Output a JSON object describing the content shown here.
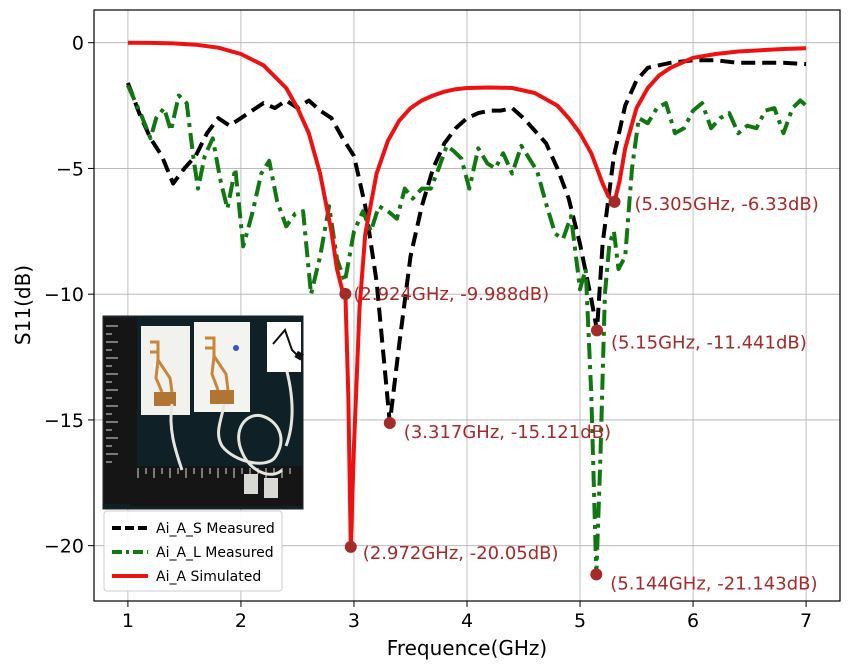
{
  "chart_data": {
    "type": "line",
    "xlabel": "Frequence(GHz)",
    "ylabel": "S11(dB)",
    "xlim": [
      0.7,
      7.3
    ],
    "ylim": [
      -22.2,
      1.3
    ],
    "xticks": [
      1,
      2,
      3,
      4,
      5,
      6,
      7
    ],
    "yticks": [
      0,
      -5,
      -10,
      -15,
      -20
    ],
    "xtick_labels": [
      "1",
      "2",
      "3",
      "4",
      "5",
      "6",
      "7"
    ],
    "ytick_labels": [
      "0",
      "−5",
      "−10",
      "−15",
      "−20"
    ],
    "grid": true,
    "legend_position": "lower-left",
    "series": [
      {
        "name": "Ai_A_S Measured",
        "color": "#000000",
        "style": "dashed",
        "x": [
          1.0,
          1.1,
          1.2,
          1.3,
          1.4,
          1.5,
          1.6,
          1.7,
          1.8,
          1.9,
          2.0,
          2.1,
          2.2,
          2.3,
          2.4,
          2.5,
          2.6,
          2.7,
          2.8,
          2.9,
          3.0,
          3.1,
          3.2,
          3.317,
          3.4,
          3.5,
          3.6,
          3.7,
          3.8,
          3.9,
          4.0,
          4.1,
          4.2,
          4.3,
          4.4,
          4.5,
          4.6,
          4.7,
          4.8,
          4.9,
          5.0,
          5.1,
          5.15,
          5.2,
          5.3,
          5.4,
          5.5,
          5.6,
          5.8,
          6.0,
          6.2,
          6.4,
          6.6,
          6.8,
          7.0
        ],
        "y": [
          -1.6,
          -2.8,
          -3.8,
          -4.5,
          -5.6,
          -5.0,
          -4.5,
          -3.6,
          -3.0,
          -3.3,
          -3.0,
          -2.7,
          -2.4,
          -2.6,
          -2.3,
          -2.6,
          -2.3,
          -2.7,
          -3.0,
          -3.8,
          -4.5,
          -6.5,
          -9.5,
          -15.12,
          -12.0,
          -8.5,
          -6.5,
          -5.0,
          -4.0,
          -3.4,
          -3.0,
          -2.8,
          -2.7,
          -2.7,
          -2.6,
          -3.0,
          -3.5,
          -4.0,
          -5.0,
          -6.2,
          -8.0,
          -10.2,
          -11.44,
          -8.0,
          -4.5,
          -2.5,
          -1.5,
          -1.0,
          -0.8,
          -0.7,
          -0.7,
          -0.8,
          -0.8,
          -0.8,
          -0.85
        ]
      },
      {
        "name": "Ai_A_L Measured",
        "color": "#117711",
        "style": "dashdot",
        "x": [
          1.0,
          1.05,
          1.12,
          1.2,
          1.25,
          1.32,
          1.38,
          1.45,
          1.52,
          1.58,
          1.62,
          1.68,
          1.75,
          1.82,
          1.88,
          1.95,
          2.02,
          2.1,
          2.18,
          2.25,
          2.32,
          2.4,
          2.48,
          2.55,
          2.62,
          2.7,
          2.78,
          2.85,
          2.92,
          3.0,
          3.08,
          3.15,
          3.22,
          3.3,
          3.38,
          3.45,
          3.52,
          3.6,
          3.68,
          3.75,
          3.82,
          3.88,
          3.95,
          4.02,
          4.1,
          4.18,
          4.25,
          4.32,
          4.4,
          4.48,
          4.55,
          4.62,
          4.7,
          4.78,
          4.85,
          4.92,
          5.0,
          5.05,
          5.1,
          5.144,
          5.18,
          5.22,
          5.26,
          5.3,
          5.34,
          5.4,
          5.46,
          5.52,
          5.6,
          5.68,
          5.76,
          5.84,
          5.92,
          6.0,
          6.08,
          6.16,
          6.24,
          6.32,
          6.4,
          6.48,
          6.56,
          6.64,
          6.72,
          6.8,
          6.88,
          6.95,
          7.0
        ],
        "y": [
          -1.7,
          -2.2,
          -2.9,
          -3.8,
          -3.0,
          -2.6,
          -3.5,
          -2.1,
          -2.4,
          -4.6,
          -5.8,
          -4.5,
          -3.8,
          -5.5,
          -6.6,
          -5.0,
          -8.1,
          -6.8,
          -5.2,
          -4.7,
          -6.3,
          -7.3,
          -6.8,
          -6.7,
          -10.0,
          -8.5,
          -6.5,
          -8.6,
          -9.5,
          -7.5,
          -6.7,
          -7.5,
          -6.5,
          -6.7,
          -7.0,
          -5.8,
          -6.2,
          -5.8,
          -5.8,
          -5.0,
          -4.1,
          -4.3,
          -4.6,
          -5.8,
          -4.2,
          -4.8,
          -5.0,
          -4.4,
          -5.2,
          -4.1,
          -4.6,
          -5.1,
          -6.4,
          -7.6,
          -7.8,
          -6.9,
          -9.8,
          -9.0,
          -14.0,
          -21.14,
          -16.5,
          -10.0,
          -8.0,
          -7.5,
          -9.0,
          -8.5,
          -5.0,
          -3.0,
          -3.2,
          -2.6,
          -2.4,
          -3.6,
          -3.4,
          -2.7,
          -2.4,
          -3.4,
          -3.0,
          -2.8,
          -3.6,
          -3.3,
          -3.4,
          -2.7,
          -2.6,
          -3.6,
          -2.6,
          -2.3,
          -2.5
        ]
      },
      {
        "name": "Ai_A Simulated",
        "color": "#ee1111",
        "style": "solid",
        "x": [
          1.0,
          1.2,
          1.4,
          1.6,
          1.8,
          2.0,
          2.2,
          2.4,
          2.5,
          2.6,
          2.7,
          2.8,
          2.85,
          2.9,
          2.924,
          2.95,
          2.972,
          3.0,
          3.05,
          3.1,
          3.2,
          3.3,
          3.4,
          3.5,
          3.6,
          3.7,
          3.8,
          3.9,
          4.0,
          4.2,
          4.4,
          4.6,
          4.8,
          4.9,
          5.0,
          5.1,
          5.15,
          5.2,
          5.25,
          5.305,
          5.35,
          5.4,
          5.5,
          5.6,
          5.7,
          5.8,
          5.9,
          6.0,
          6.2,
          6.4,
          6.6,
          6.8,
          7.0
        ],
        "y": [
          0.0,
          -0.01,
          -0.03,
          -0.08,
          -0.2,
          -0.45,
          -0.9,
          -1.8,
          -2.6,
          -3.6,
          -5.2,
          -7.5,
          -9.0,
          -9.9,
          -9.99,
          -14.0,
          -20.05,
          -16.0,
          -10.5,
          -7.6,
          -5.2,
          -3.9,
          -3.1,
          -2.6,
          -2.3,
          -2.1,
          -1.95,
          -1.85,
          -1.8,
          -1.78,
          -1.8,
          -2.0,
          -2.5,
          -3.0,
          -3.6,
          -4.4,
          -5.0,
          -5.6,
          -6.1,
          -6.33,
          -5.5,
          -4.2,
          -2.6,
          -1.8,
          -1.3,
          -1.0,
          -0.8,
          -0.6,
          -0.45,
          -0.35,
          -0.3,
          -0.25,
          -0.22
        ]
      }
    ],
    "annotations": [
      {
        "x": 2.924,
        "y": -9.988,
        "label": "(2.924GHz, -9.988dB)"
      },
      {
        "x": 2.972,
        "y": -20.05,
        "label": "(2.972GHz, -20.05dB)"
      },
      {
        "x": 3.317,
        "y": -15.121,
        "label": "(3.317GHz, -15.121dB)"
      },
      {
        "x": 5.15,
        "y": -11.441,
        "label": "(5.15GHz, -11.441dB)"
      },
      {
        "x": 5.144,
        "y": -21.143,
        "label": "(5.144GHz, -21.143dB)"
      },
      {
        "x": 5.305,
        "y": -6.33,
        "label": "(5.305GHz, -6.33dB)"
      }
    ],
    "annotation_color": "#a52a2a",
    "marker_color": "#a52a2a"
  }
}
